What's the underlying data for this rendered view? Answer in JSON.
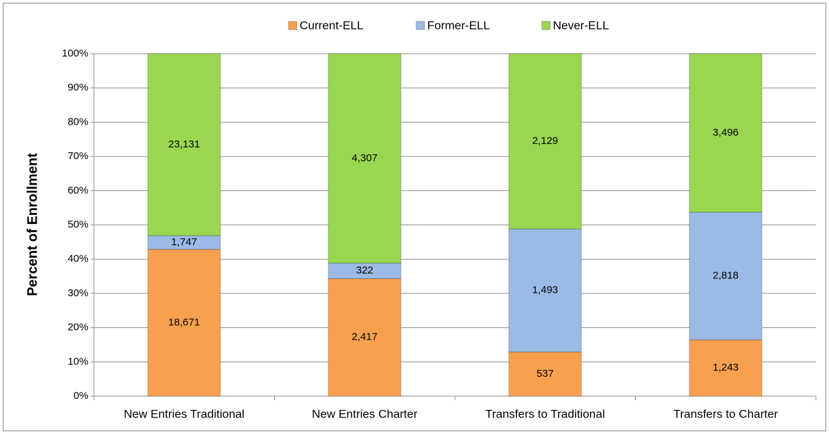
{
  "chart_data": {
    "type": "bar",
    "stack": "percent",
    "y_label": "Percent of Enrollment",
    "categories": [
      "New Entries Traditional",
      "New Entries Charter",
      "Transfers to Traditional",
      "Transfers to Charter"
    ],
    "series": [
      {
        "name": "Current-ELL",
        "color": "#f9a04e",
        "values": [
          18671,
          2417,
          537,
          1243
        ],
        "value_labels": [
          "18,671",
          "2,417",
          "537",
          "1,243"
        ]
      },
      {
        "name": "Former-ELL",
        "color": "#9bbbe6",
        "values": [
          1747,
          322,
          1493,
          2818
        ],
        "value_labels": [
          "1,747",
          "322",
          "1,493",
          "2,818"
        ]
      },
      {
        "name": "Never-ELL",
        "color": "#9ad750",
        "values": [
          23131,
          4307,
          2129,
          3496
        ],
        "value_labels": [
          "23,131",
          "4,307",
          "2,129",
          "3,496"
        ]
      }
    ],
    "ylim": [
      0,
      100
    ],
    "yticks": [
      {
        "value": 0,
        "label": "0%"
      },
      {
        "value": 10,
        "label": "10%"
      },
      {
        "value": 20,
        "label": "20%"
      },
      {
        "value": 30,
        "label": "30%"
      },
      {
        "value": 40,
        "label": "40%"
      },
      {
        "value": 50,
        "label": "50%"
      },
      {
        "value": 60,
        "label": "60%"
      },
      {
        "value": 70,
        "label": "70%"
      },
      {
        "value": 80,
        "label": "80%"
      },
      {
        "value": 90,
        "label": "90%"
      },
      {
        "value": 100,
        "label": "100%"
      }
    ],
    "grid": true,
    "legend": "top"
  }
}
